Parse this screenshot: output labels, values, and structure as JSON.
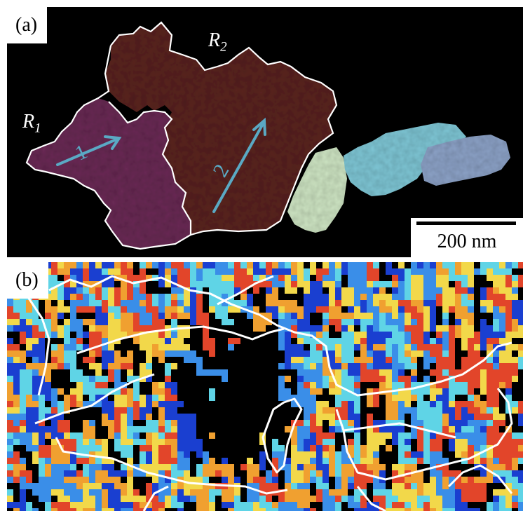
{
  "panel_a": {
    "label": "(a)",
    "region_1": {
      "letter": "R",
      "index": "1"
    },
    "region_2": {
      "letter": "R",
      "index": "2"
    },
    "arrow_1_label": "1",
    "arrow_2_label": "2",
    "scale_bar_text": "200 nm"
  },
  "panel_b": {
    "label": "(b)"
  },
  "colors": {
    "background": "#000000",
    "boundary": "#ffffff",
    "region_1_fill": "#6a2a55",
    "region_2_fill": "#5a2320",
    "arrow": "#5aa9c4",
    "grain_pale_green": "#cfe6c4",
    "grain_cyan": "#7fc7d6",
    "grain_blue_grey": "#8da3c8",
    "map_palette": [
      "#000000",
      "#1a3fd0",
      "#3a8ee8",
      "#5fd4e6",
      "#f2d84a",
      "#f0a030",
      "#e2452a"
    ]
  }
}
